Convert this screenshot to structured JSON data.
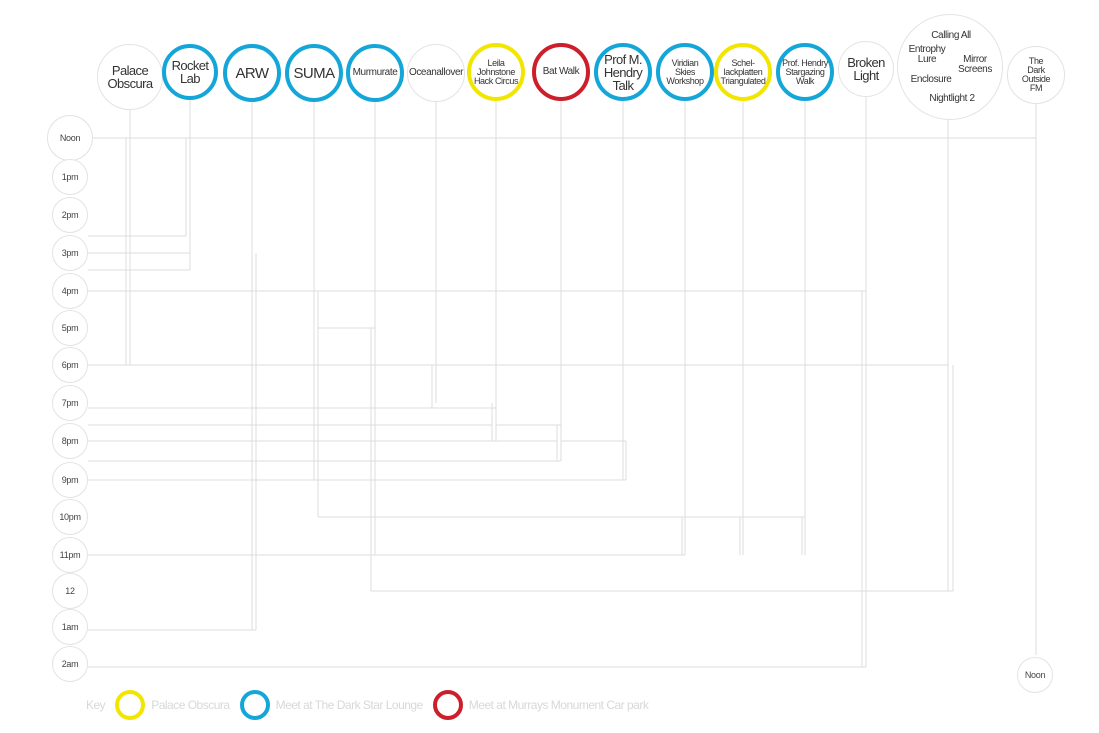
{
  "diagram": {
    "venues": [
      {
        "id": "palace-obscura",
        "label": "Palace\nObscura",
        "style": "plain"
      },
      {
        "id": "rocket-lab",
        "label": "Rocket\nLab",
        "style": "blue"
      },
      {
        "id": "arw",
        "label": "ARW",
        "style": "blue"
      },
      {
        "id": "suma",
        "label": "SUMA",
        "style": "blue"
      },
      {
        "id": "murmurate",
        "label": "Murmurate",
        "style": "blue"
      },
      {
        "id": "oceanallover",
        "label": "Oceanallover",
        "style": "plain"
      },
      {
        "id": "leila-johnstone",
        "label": "Leila\nJohnstone\nHack Circus",
        "style": "yellow"
      },
      {
        "id": "bat-walk",
        "label": "Bat Walk",
        "style": "red"
      },
      {
        "id": "prof-m-hendry-talk",
        "label": "Prof  M.\nHendry\nTalk",
        "style": "blue"
      },
      {
        "id": "viridian-skies",
        "label": "Viridian\nSkies\nWorkshop",
        "style": "blue"
      },
      {
        "id": "schellackplatten",
        "label": "Schel-\nlackplatten\nTriangulated",
        "style": "yellow"
      },
      {
        "id": "prof-hendry-stargazing",
        "label": "Prof. Hendry\nStargazing\nWalk",
        "style": "blue"
      },
      {
        "id": "broken-light",
        "label": "Broken\nLight",
        "style": "plain"
      },
      {
        "id": "the-dark-outside",
        "label": "The\nDark\nOutside\nFM",
        "style": "plain"
      }
    ],
    "cluster": {
      "calling_all": "Calling All",
      "entropy_lure": "Entrophy\nLure",
      "mirror_screens": "Mirror\nScreens",
      "enclosure": "Enclosure",
      "nightlight": "Nightlight 2"
    },
    "times": [
      "Noon",
      "1pm",
      "2pm",
      "3pm",
      "4pm",
      "5pm",
      "6pm",
      "7pm",
      "8pm",
      "9pm",
      "10pm",
      "11pm",
      "12",
      "1am",
      "2am"
    ],
    "end_label": "Noon"
  },
  "key": {
    "title": "Key",
    "items": [
      {
        "label": "Palace Obscura",
        "color": "yellow"
      },
      {
        "label": "Meet at The Dark Star Lounge",
        "color": "blue"
      },
      {
        "label": "Meet at Murrays Monument Car park",
        "color": "red"
      }
    ]
  },
  "colors": {
    "yellow": "#f2e500",
    "blue": "#14a6d8",
    "red": "#cc1f2b",
    "line": "#dcdcdc"
  }
}
